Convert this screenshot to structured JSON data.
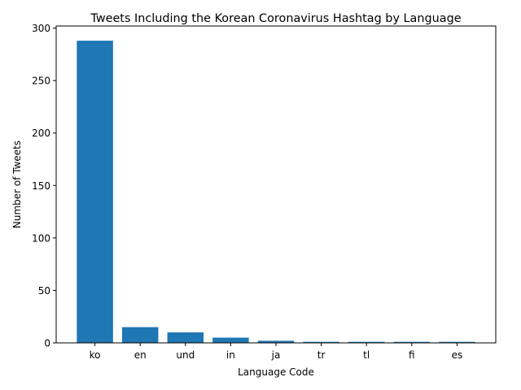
{
  "chart_data": {
    "type": "bar",
    "title": "Tweets Including the Korean Coronavirus Hashtag by Language",
    "xlabel": "Language Code",
    "ylabel": "Number of Tweets",
    "categories": [
      "ko",
      "en",
      "und",
      "in",
      "ja",
      "tr",
      "tl",
      "fi",
      "es"
    ],
    "values": [
      288,
      15,
      10,
      5,
      2,
      1,
      1,
      1,
      1
    ],
    "ylim": [
      0,
      302
    ],
    "yticks": [
      0,
      50,
      100,
      150,
      200,
      250,
      300
    ],
    "grid": false,
    "bar_color": "#1f77b4"
  }
}
